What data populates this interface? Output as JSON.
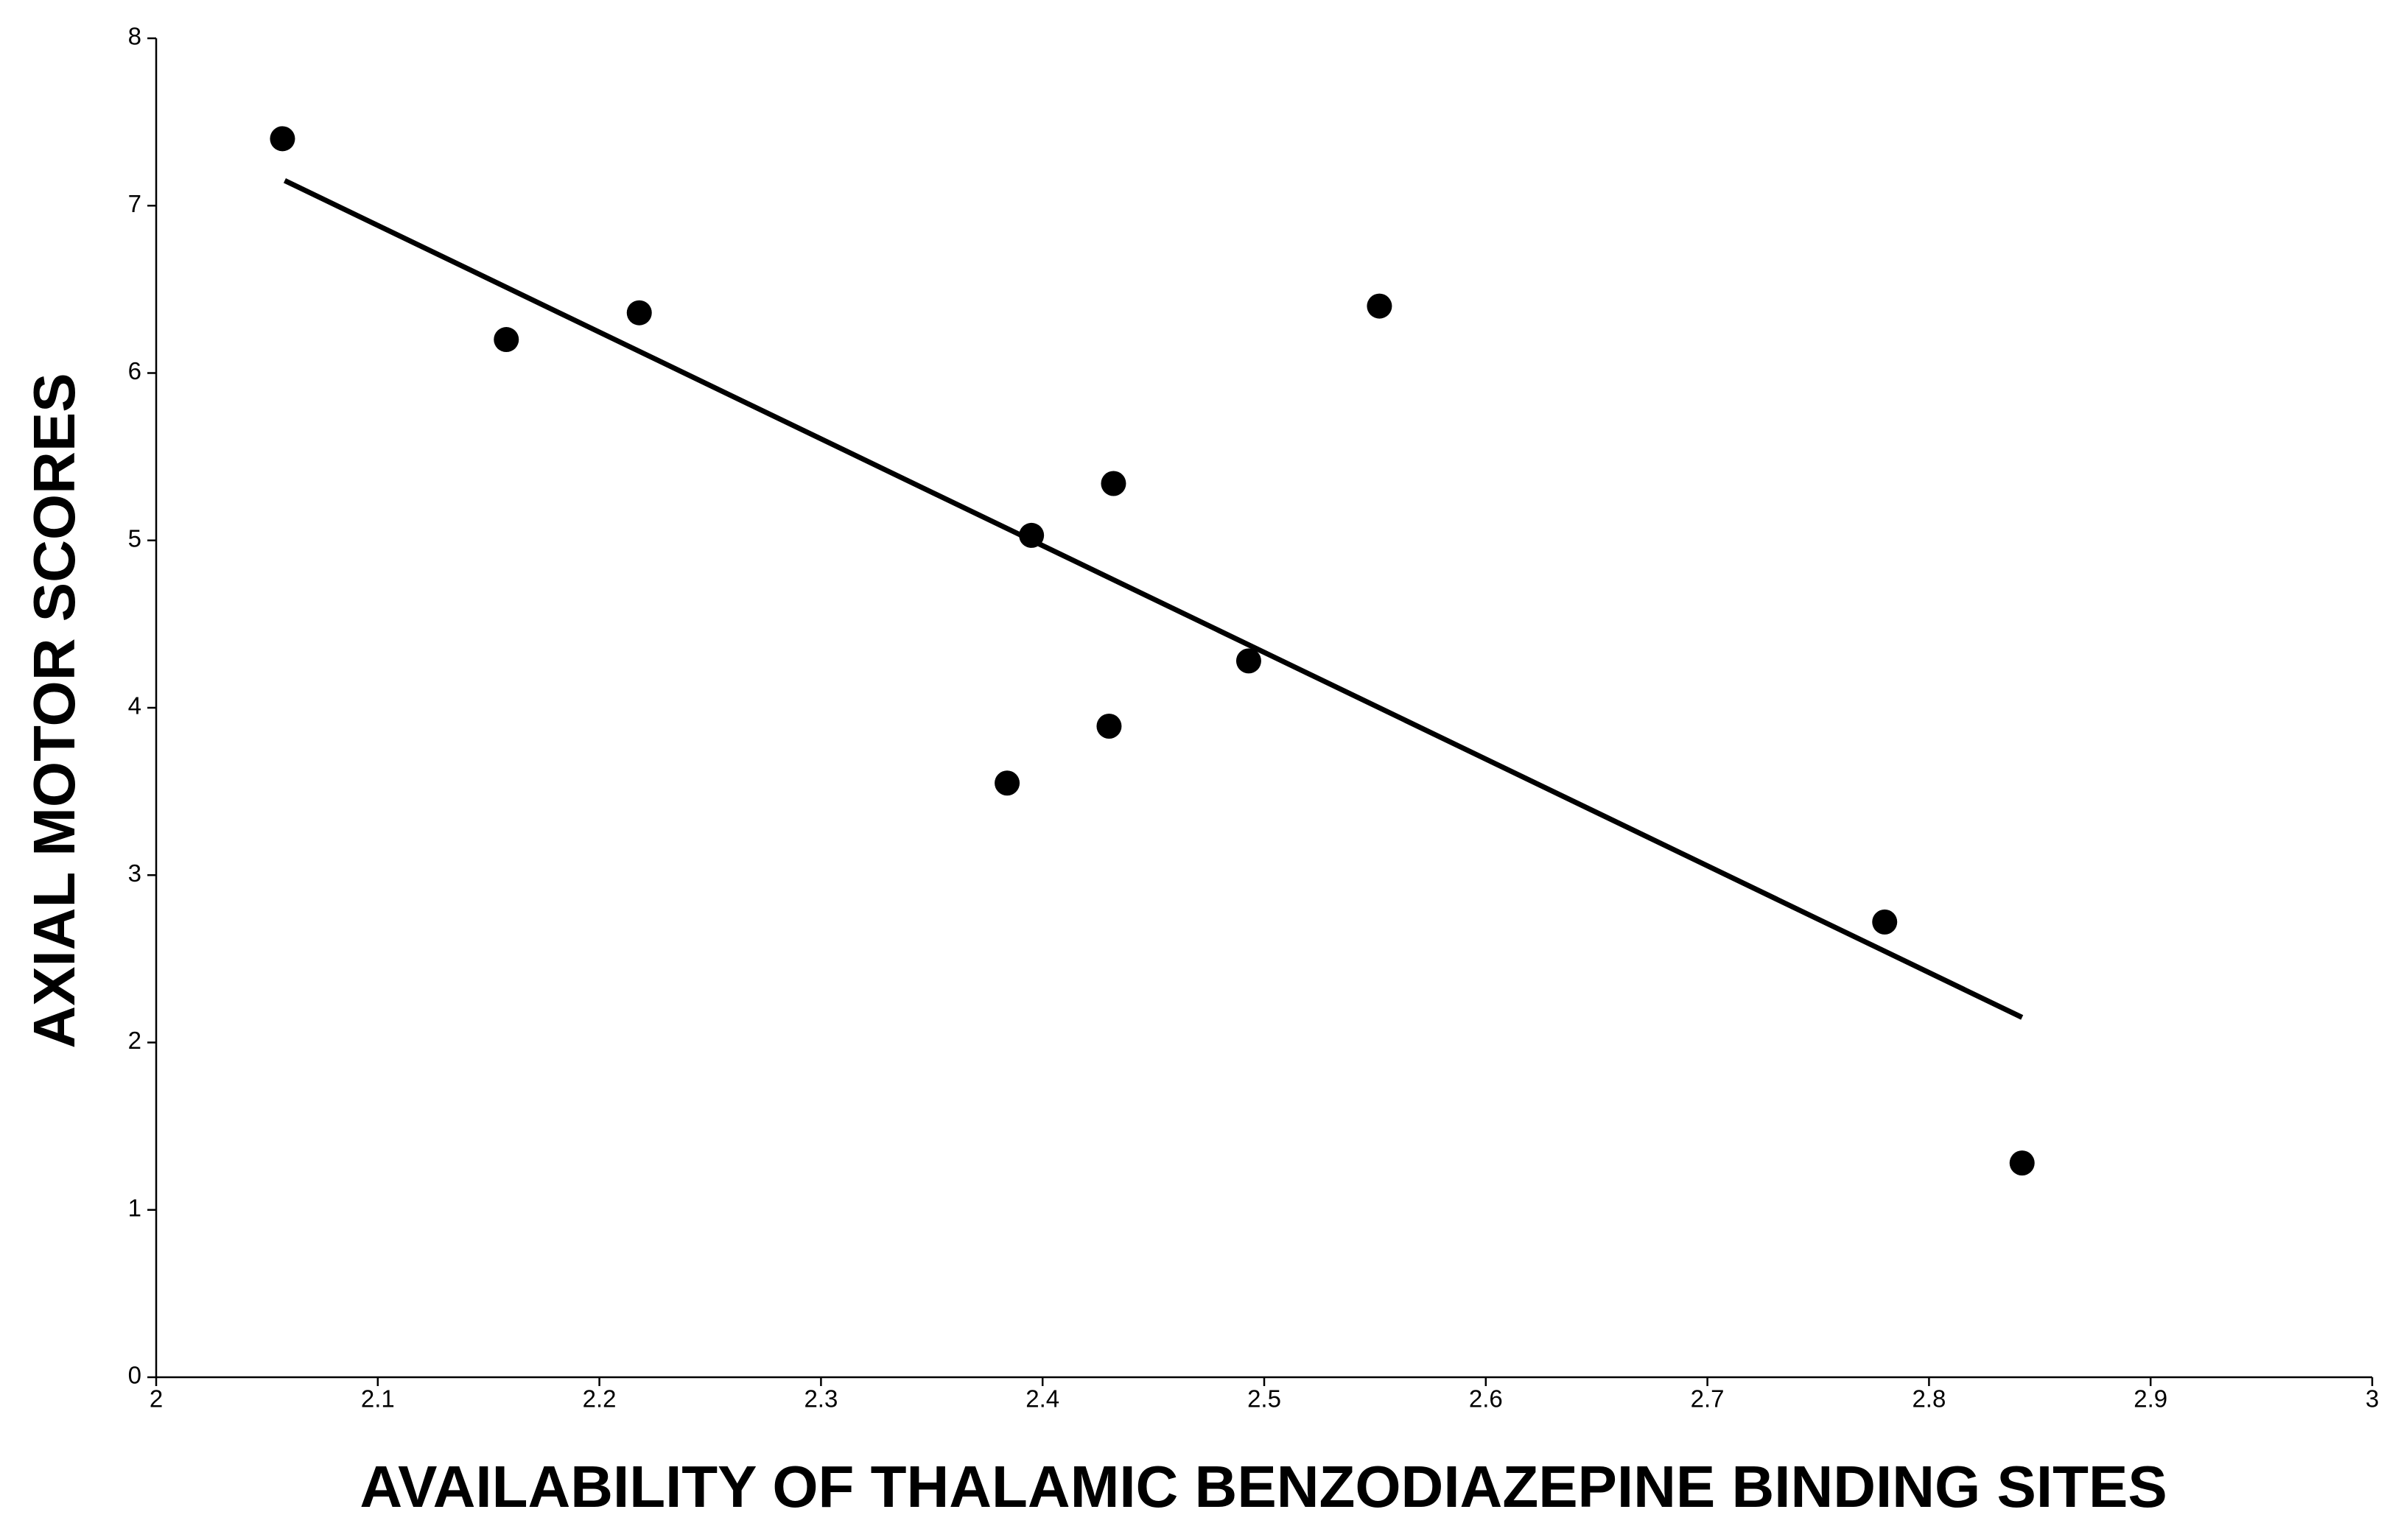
{
  "chart_data": {
    "type": "scatter",
    "x_label": "AVAILABILITY OF THALAMIC BENZODIAZEPINE BINDING SITES",
    "y_label": "AXIAL MOTOR SCORES",
    "x": [
      2.057,
      2.158,
      2.218,
      2.384,
      2.395,
      2.43,
      2.432,
      2.493,
      2.552,
      2.78,
      2.842
    ],
    "values": [
      7.4,
      6.2,
      6.36,
      3.55,
      5.03,
      3.89,
      5.34,
      4.28,
      6.4,
      2.72,
      1.28
    ],
    "color": "#000000",
    "fit_line": {
      "x": [
        2.058,
        2.842
      ],
      "values": [
        7.15,
        2.15
      ],
      "color": "#000000"
    },
    "xlim": [
      2,
      3
    ],
    "xticks": [
      2,
      2.1,
      2.2,
      2.3,
      2.4,
      2.5,
      2.6,
      2.7,
      2.8,
      2.9,
      3
    ],
    "ylim": [
      0,
      8
    ],
    "yticks": [
      0,
      1,
      2,
      3,
      4,
      5,
      6,
      7,
      8
    ],
    "grid": false
  }
}
